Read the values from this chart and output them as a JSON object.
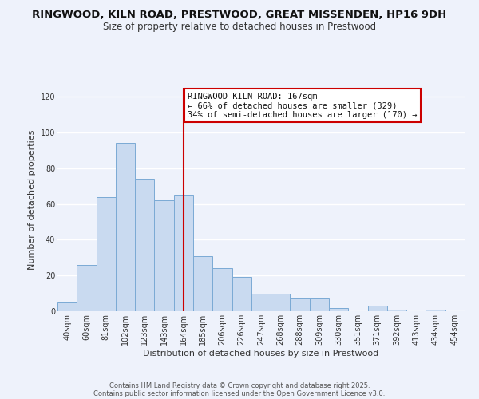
{
  "title": "RINGWOOD, KILN ROAD, PRESTWOOD, GREAT MISSENDEN, HP16 9DH",
  "subtitle": "Size of property relative to detached houses in Prestwood",
  "xlabel": "Distribution of detached houses by size in Prestwood",
  "ylabel": "Number of detached properties",
  "bar_labels": [
    "40sqm",
    "60sqm",
    "81sqm",
    "102sqm",
    "123sqm",
    "143sqm",
    "164sqm",
    "185sqm",
    "206sqm",
    "226sqm",
    "247sqm",
    "268sqm",
    "288sqm",
    "309sqm",
    "330sqm",
    "351sqm",
    "371sqm",
    "392sqm",
    "413sqm",
    "434sqm",
    "454sqm"
  ],
  "bar_heights": [
    5,
    26,
    64,
    94,
    74,
    62,
    65,
    31,
    24,
    19,
    10,
    10,
    7,
    7,
    2,
    0,
    3,
    1,
    0,
    1,
    0
  ],
  "bar_color": "#c9daf0",
  "bar_edge_color": "#7baad4",
  "vline_x_index": 6,
  "vline_color": "#cc0000",
  "ylim": [
    0,
    125
  ],
  "yticks": [
    0,
    20,
    40,
    60,
    80,
    100,
    120
  ],
  "annotation_title": "RINGWOOD KILN ROAD: 167sqm",
  "annotation_line1": "← 66% of detached houses are smaller (329)",
  "annotation_line2": "34% of semi-detached houses are larger (170) →",
  "annotation_box_color": "#ffffff",
  "annotation_box_edge": "#cc0000",
  "footer1": "Contains HM Land Registry data © Crown copyright and database right 2025.",
  "footer2": "Contains public sector information licensed under the Open Government Licence v3.0.",
  "background_color": "#eef2fb",
  "grid_color": "#ffffff",
  "title_fontsize": 9.5,
  "subtitle_fontsize": 8.5,
  "axis_label_fontsize": 8,
  "tick_fontsize": 7,
  "annotation_fontsize": 7.5,
  "footer_fontsize": 6
}
